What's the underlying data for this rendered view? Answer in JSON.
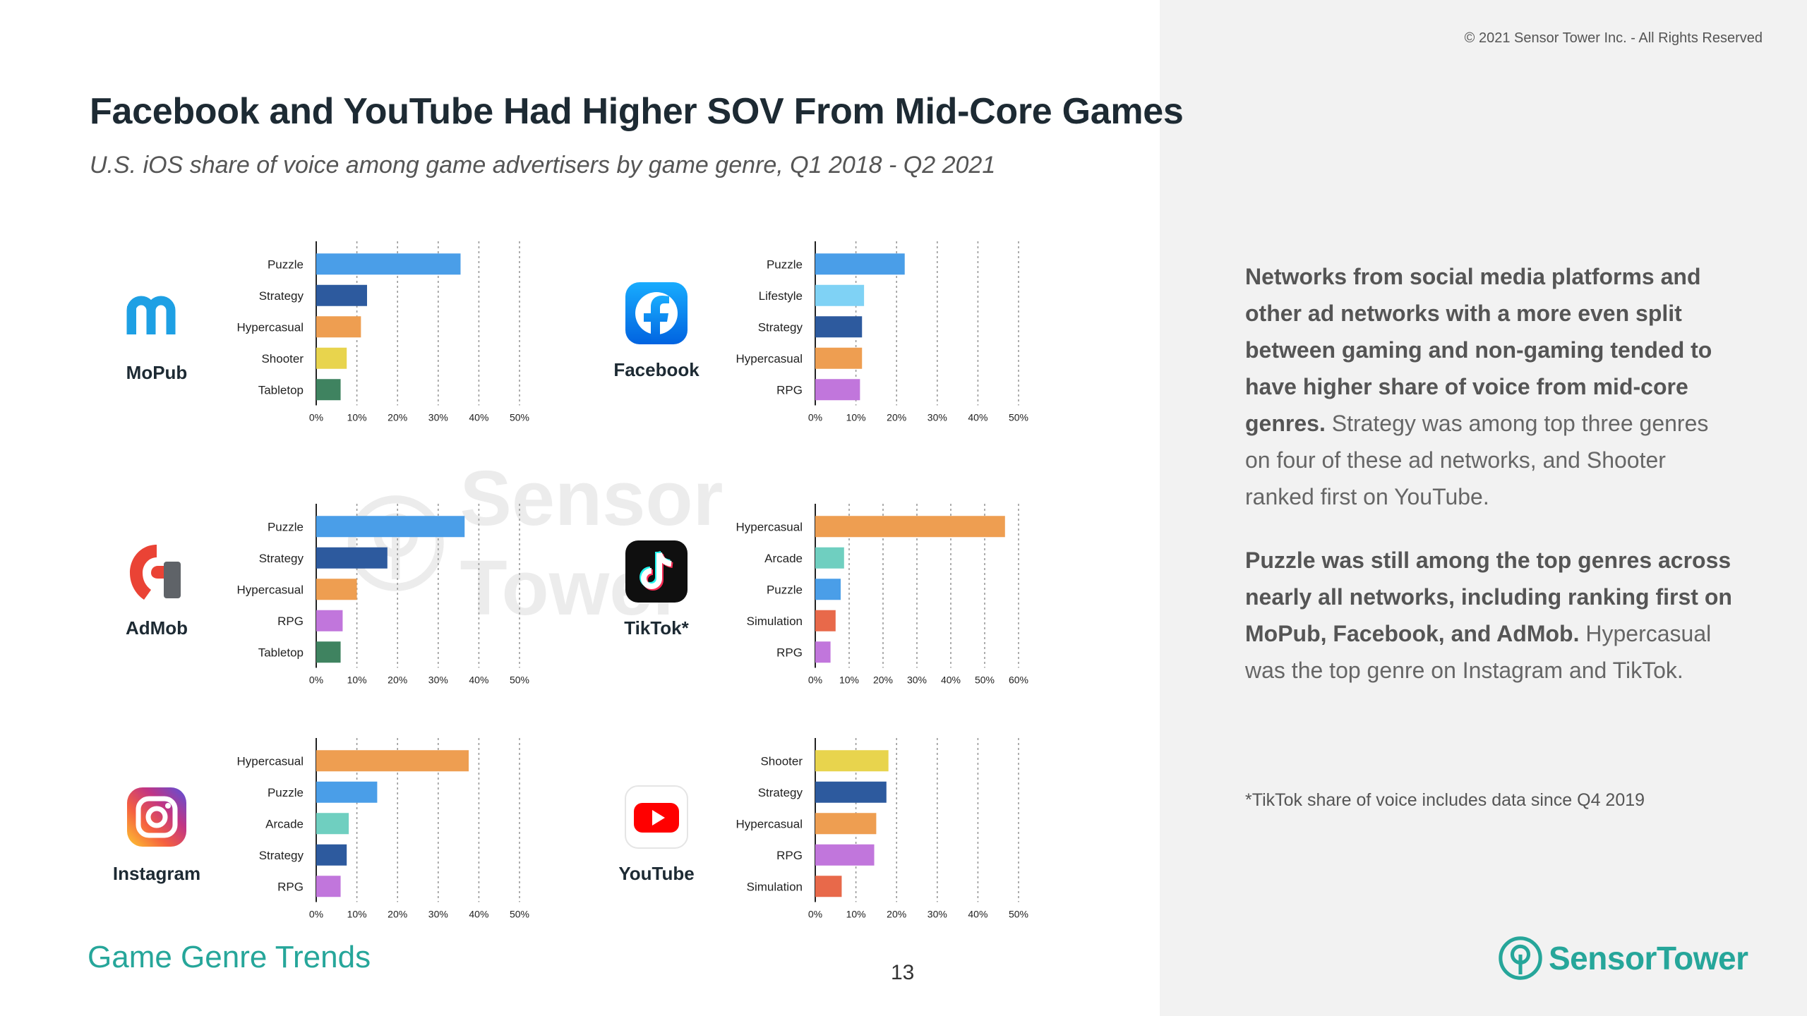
{
  "header": {
    "copyright": "© 2021 Sensor Tower Inc. - All Rights Reserved",
    "title": "Facebook and YouTube Had Higher SOV From Mid-Core Games",
    "subtitle": "U.S. iOS share of voice among game advertisers by game genre, Q1 2018 - Q2 2021"
  },
  "brands": {
    "mopub": "MoPub",
    "facebook": "Facebook",
    "admob": "AdMob",
    "tiktok": "TikTok*",
    "instagram": "Instagram",
    "youtube": "YouTube"
  },
  "commentary": {
    "p1_bold": "Networks from social media platforms and other ad networks with a more even split between gaming and non-gaming tended to have higher share of voice from mid-core genres.",
    "p1_rest": " Strategy was among top three genres on four of these ad networks, and Shooter ranked first on YouTube.",
    "p2_bold": "Puzzle was still  among the top genres across nearly all networks, including ranking first on MoPub, Facebook, and AdMob.",
    "p2_rest": " Hypercasual was the top genre on Instagram and TikTok.",
    "footnote": "*TikTok share of voice includes data since Q4 2019"
  },
  "footer": {
    "section": "Game Genre Trends",
    "page": "13",
    "logo_text": "SensorTower",
    "watermark_text": "Sensor Tower"
  },
  "colors": {
    "Puzzle": "#4a9ee8",
    "Strategy": "#2d5a9e",
    "Hypercasual": "#ee9e51",
    "Shooter": "#e8d44d",
    "Tabletop": "#3f8360",
    "Lifestyle": "#7fd2f5",
    "RPG": "#c176dc",
    "Arcade": "#6fcfc0",
    "Simulation": "#e8694a",
    "accent": "#26a69a"
  },
  "chart_data": [
    {
      "id": "mopub",
      "type": "bar",
      "orientation": "horizontal",
      "title": "MoPub",
      "categories": [
        "Puzzle",
        "Strategy",
        "Hypercasual",
        "Shooter",
        "Tabletop"
      ],
      "values": [
        35.5,
        12.5,
        11,
        7.5,
        6
      ],
      "xlim": [
        0,
        50
      ],
      "ticks": [
        "0%",
        "10%",
        "20%",
        "30%",
        "40%",
        "50%"
      ]
    },
    {
      "id": "facebook",
      "type": "bar",
      "orientation": "horizontal",
      "title": "Facebook",
      "categories": [
        "Puzzle",
        "Lifestyle",
        "Strategy",
        "Hypercasual",
        "RPG"
      ],
      "values": [
        22,
        12,
        11.5,
        11.5,
        11
      ],
      "xlim": [
        0,
        50
      ],
      "ticks": [
        "0%",
        "10%",
        "20%",
        "30%",
        "40%",
        "50%"
      ]
    },
    {
      "id": "admob",
      "type": "bar",
      "orientation": "horizontal",
      "title": "AdMob",
      "categories": [
        "Puzzle",
        "Strategy",
        "Hypercasual",
        "RPG",
        "Tabletop"
      ],
      "values": [
        36.5,
        17.5,
        10,
        6.5,
        6
      ],
      "xlim": [
        0,
        50
      ],
      "ticks": [
        "0%",
        "10%",
        "20%",
        "30%",
        "40%",
        "50%"
      ]
    },
    {
      "id": "tiktok",
      "type": "bar",
      "orientation": "horizontal",
      "title": "TikTok*",
      "categories": [
        "Hypercasual",
        "Arcade",
        "Puzzle",
        "Simulation",
        "RPG"
      ],
      "values": [
        56,
        8.5,
        7.5,
        6,
        4.5
      ],
      "xlim": [
        0,
        60
      ],
      "ticks": [
        "0%",
        "10%",
        "20%",
        "30%",
        "40%",
        "50%",
        "60%"
      ]
    },
    {
      "id": "instagram",
      "type": "bar",
      "orientation": "horizontal",
      "title": "Instagram",
      "categories": [
        "Hypercasual",
        "Puzzle",
        "Arcade",
        "Strategy",
        "RPG"
      ],
      "values": [
        37.5,
        15,
        8,
        7.5,
        6
      ],
      "xlim": [
        0,
        50
      ],
      "ticks": [
        "0%",
        "10%",
        "20%",
        "30%",
        "40%",
        "50%"
      ]
    },
    {
      "id": "youtube",
      "type": "bar",
      "orientation": "horizontal",
      "title": "YouTube",
      "categories": [
        "Shooter",
        "Strategy",
        "Hypercasual",
        "RPG",
        "Simulation"
      ],
      "values": [
        18,
        17.5,
        15,
        14.5,
        6.5
      ],
      "xlim": [
        0,
        50
      ],
      "ticks": [
        "0%",
        "10%",
        "20%",
        "30%",
        "40%",
        "50%"
      ]
    }
  ]
}
